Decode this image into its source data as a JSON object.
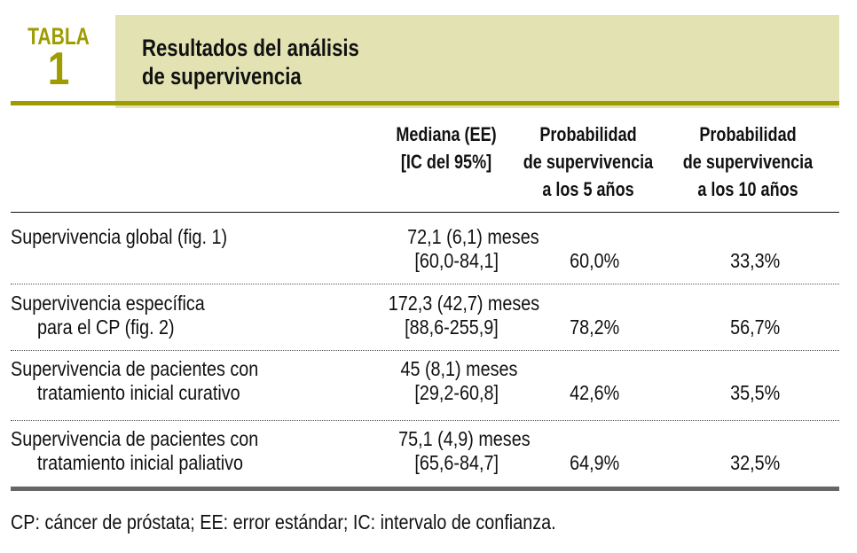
{
  "table": {
    "label": "TABLA",
    "number": "1",
    "title_line1": "Resultados del análisis",
    "title_line2": "de supervivencia",
    "colors": {
      "accent": "#9e9c00",
      "banner": "#e3e2b2",
      "bottom_rule": "#666666"
    },
    "columns": [
      {
        "line1": "Mediana (EE)",
        "line2": "[IC del 95%]",
        "line3": ""
      },
      {
        "line1": "Probabilidad",
        "line2": "de supervivencia",
        "line3": "a los 5 años"
      },
      {
        "line1": "Probabilidad",
        "line2": "de supervivencia",
        "line3": "a los 10 años"
      }
    ],
    "rows": [
      {
        "label1": "Supervivencia global (fig. 1)",
        "label2": "",
        "median": "72,1 (6,1) meses",
        "ci": "[60,0-84,1]",
        "p5": "60,0%",
        "p10": "33,3%"
      },
      {
        "label1": "Supervivencia específica",
        "label2": "para el CP (fig. 2)",
        "median": "172,3 (42,7) meses",
        "ci": "[88,6-255,9]",
        "p5": "78,2%",
        "p10": "56,7%"
      },
      {
        "label1": "Supervivencia de pacientes con",
        "label2": "tratamiento inicial curativo",
        "median": "45 (8,1) meses",
        "ci": "[29,2-60,8]",
        "p5": "42,6%",
        "p10": "35,5%"
      },
      {
        "label1": "Supervivencia de pacientes con",
        "label2": "tratamiento inicial paliativo",
        "median": "75,1 (4,9) meses",
        "ci": "[65,6-84,7]",
        "p5": "64,9%",
        "p10": "32,5%"
      }
    ],
    "footnote": "CP: cáncer de próstata; EE: error estándar; IC: intervalo de confianza."
  }
}
